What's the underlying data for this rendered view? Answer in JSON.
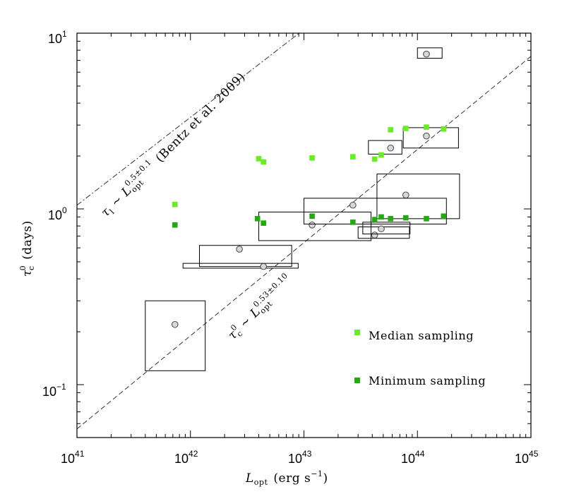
{
  "chart_data": {
    "type": "scatter",
    "xscale": "log",
    "yscale": "log",
    "xlim": [
      1e+41,
      1e+45
    ],
    "ylim": [
      0.05,
      10
    ],
    "x_tick_labels": [
      {
        "value": 1e+41,
        "base": "10",
        "exp": "41"
      },
      {
        "value": 1e+42,
        "base": "10",
        "exp": "42"
      },
      {
        "value": 1e+43,
        "base": "10",
        "exp": "43"
      },
      {
        "value": 1e+44,
        "base": "10",
        "exp": "44"
      },
      {
        "value": 1e+45,
        "base": "10",
        "exp": "45"
      }
    ],
    "y_tick_labels": [
      {
        "value": 0.1,
        "base": "10",
        "exp": "−1"
      },
      {
        "value": 1,
        "base": "10",
        "exp": "0"
      },
      {
        "value": 10,
        "base": "10",
        "exp": "1"
      }
    ],
    "xlabel": {
      "sym": "L",
      "sub": "opt",
      "unit_pre": "(erg s",
      "unit_exp": "−1",
      "unit_post": ")"
    },
    "ylabel": {
      "sym": "τ",
      "sub": "c",
      "sup": "0",
      "unit": "(days)"
    },
    "legend": [
      {
        "label": "Median sampling",
        "color": "#66ee22"
      },
      {
        "label": "Minimum sampling",
        "color": "#22aa11"
      }
    ],
    "lines": [
      {
        "name": "bentz-line",
        "style": "dashdot",
        "x_range": [
          1e+41,
          2e+44
        ],
        "intercept_at_1e41": 1.05,
        "slope": 0.5,
        "label_parts": {
          "sym": "τ",
          "sub": "l",
          "rel": "∼",
          "L": "L",
          "Lsub": "opt",
          "exp": "0.5±0.1",
          "cite": "(Bentz et al. 2009)"
        }
      },
      {
        "name": "fit-line",
        "style": "dashed",
        "x_range": [
          1e+41,
          1e+45
        ],
        "intercept_at_1e41": 0.056,
        "slope": 0.53,
        "label_parts": {
          "sym": "τ",
          "sub": "c",
          "sup": "0",
          "rel": "∼",
          "L": "L",
          "Lsub": "opt",
          "exp": "0.53±0.10"
        }
      }
    ],
    "series": [
      {
        "name": "Median sampling",
        "points": [
          {
            "x": 7.3e+41,
            "y": 1.06
          },
          {
            "x": 4e+42,
            "y": 1.93
          },
          {
            "x": 4.4e+42,
            "y": 1.85
          },
          {
            "x": 1.18e+43,
            "y": 1.95
          },
          {
            "x": 2.7e+43,
            "y": 1.98
          },
          {
            "x": 4.2e+43,
            "y": 1.92
          },
          {
            "x": 4.8e+43,
            "y": 2.03
          },
          {
            "x": 5.8e+43,
            "y": 2.82
          },
          {
            "x": 7.9e+43,
            "y": 2.87
          },
          {
            "x": 1.2e+44,
            "y": 2.92
          },
          {
            "x": 1.7e+44,
            "y": 2.85
          }
        ]
      },
      {
        "name": "Minimum sampling",
        "points": [
          {
            "x": 7.3e+41,
            "y": 0.81
          },
          {
            "x": 3.9e+42,
            "y": 0.88
          },
          {
            "x": 4.4e+42,
            "y": 0.83
          },
          {
            "x": 1.18e+43,
            "y": 0.91
          },
          {
            "x": 2.7e+43,
            "y": 0.84
          },
          {
            "x": 4.2e+43,
            "y": 0.87
          },
          {
            "x": 4.8e+43,
            "y": 0.9
          },
          {
            "x": 5.8e+43,
            "y": 0.88
          },
          {
            "x": 7.9e+43,
            "y": 0.89
          },
          {
            "x": 1.2e+44,
            "y": 0.88
          },
          {
            "x": 1.7e+44,
            "y": 0.91
          }
        ]
      },
      {
        "name": "Measured (error boxes)",
        "points": [
          {
            "x": 7.3e+41,
            "y": 0.22,
            "xerr": [
              4e+41,
              1.35e+42
            ],
            "yerr": [
              0.12,
              0.3
            ]
          },
          {
            "x": 2.7e+42,
            "y": 0.59,
            "xerr": [
              1.2e+42,
              7.8e+42
            ],
            "yerr": [
              0.47,
              0.62
            ]
          },
          {
            "x": 4.4e+42,
            "y": 0.47,
            "xerr": [
              8.6e+41,
              8.9e+42
            ],
            "yerr": [
              0.46,
              0.49
            ]
          },
          {
            "x": 1.18e+43,
            "y": 0.81,
            "xerr": [
              4e+42,
              3.9e+43
            ],
            "yerr": [
              0.66,
              0.96
            ]
          },
          {
            "x": 2.7e+43,
            "y": 1.05,
            "xerr": [
              1e+43,
              1.8e+44
            ],
            "yerr": [
              0.82,
              1.15
            ]
          },
          {
            "x": 4.2e+43,
            "y": 0.71,
            "xerr": [
              3e+43,
              8.5e+43
            ],
            "yerr": [
              0.68,
              0.79
            ]
          },
          {
            "x": 4.8e+43,
            "y": 0.77,
            "xerr": [
              3.3e+43,
              8.6e+43
            ],
            "yerr": [
              0.72,
              0.84
            ]
          },
          {
            "x": 7.9e+43,
            "y": 1.2,
            "xerr": [
              4.4e+43,
              2.35e+44
            ],
            "yerr": [
              0.88,
              1.58
            ]
          },
          {
            "x": 5.8e+43,
            "y": 2.22,
            "xerr": [
              3.7e+43,
              7.3e+43
            ],
            "yerr": [
              2.05,
              2.45
            ]
          },
          {
            "x": 1.2e+44,
            "y": 2.6,
            "xerr": [
              7.5e+43,
              2.3e+44
            ],
            "yerr": [
              2.22,
              2.9
            ]
          },
          {
            "x": 1.2e+44,
            "y": 7.6,
            "xerr": [
              1e+44,
              1.65e+44
            ],
            "yerr": [
              7.2,
              8.25
            ]
          }
        ]
      }
    ]
  }
}
